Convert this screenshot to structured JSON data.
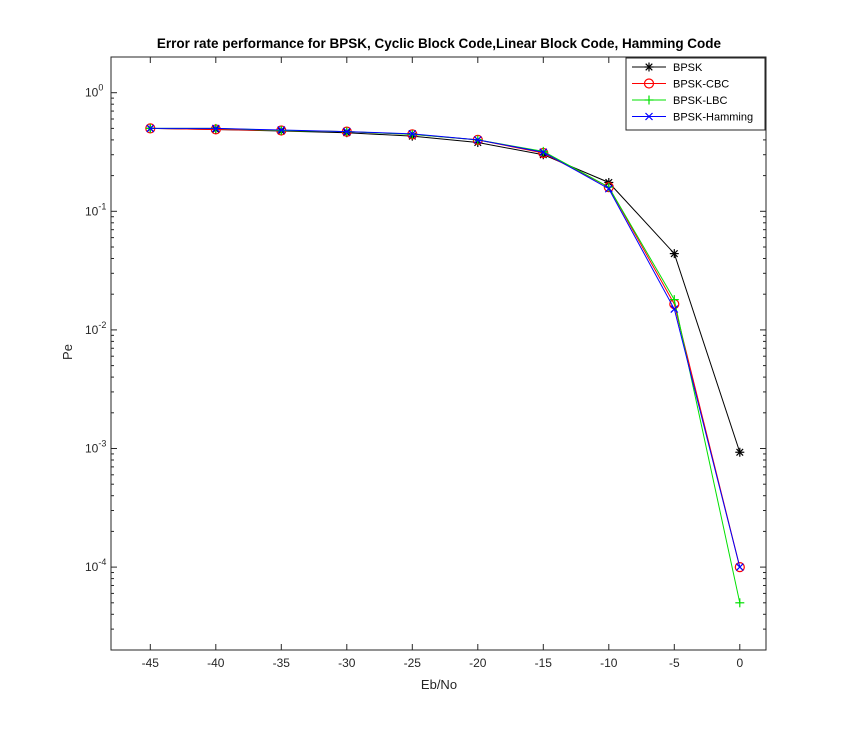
{
  "chart_data": {
    "type": "line",
    "title": "Error rate performance for BPSK, Cyclic Block Code,Linear Block Code, Hamming Code",
    "xlabel": "Eb/No",
    "ylabel": "Pe",
    "xlim": [
      -48,
      2
    ],
    "ylim": [
      2e-05,
      2
    ],
    "yscale": "log",
    "grid": false,
    "legend_position": "top-right",
    "x": [
      -45,
      -40,
      -35,
      -30,
      -25,
      -20,
      -15,
      -10,
      -5,
      0
    ],
    "x_ticks": [
      -45,
      -40,
      -35,
      -30,
      -25,
      -20,
      -15,
      -10,
      -5,
      0
    ],
    "y_tick_exponents": [
      0,
      -1,
      -2,
      -3,
      -4
    ],
    "y_tick_base": "10",
    "series": [
      {
        "name": "BPSK",
        "color": "#000000",
        "marker": "star",
        "values": [
          0.5,
          0.49,
          0.475,
          0.46,
          0.43,
          0.38,
          0.3,
          0.175,
          0.044,
          0.00093
        ]
      },
      {
        "name": "BPSK-CBC",
        "color": "#ff0000",
        "marker": "circle",
        "values": [
          0.5,
          0.49,
          0.48,
          0.47,
          0.445,
          0.4,
          0.31,
          0.16,
          0.0165,
          0.0001
        ]
      },
      {
        "name": "BPSK-LBC",
        "color": "#00e000",
        "marker": "plus",
        "values": [
          0.5,
          0.5,
          0.48,
          0.47,
          0.445,
          0.4,
          0.32,
          0.16,
          0.018,
          5e-05
        ]
      },
      {
        "name": "BPSK-Hamming",
        "color": "#0000ff",
        "marker": "x",
        "values": [
          0.5,
          0.5,
          0.485,
          0.47,
          0.45,
          0.4,
          0.315,
          0.155,
          0.015,
          0.0001
        ]
      }
    ]
  }
}
